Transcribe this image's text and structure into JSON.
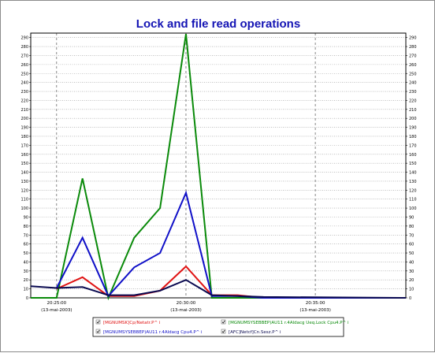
{
  "chart_data": {
    "type": "line",
    "title": "Lock and file read operations",
    "xlabel": "",
    "ylabel": "",
    "ylim": [
      0,
      295
    ],
    "yticks": [
      0,
      10,
      20,
      30,
      40,
      50,
      60,
      70,
      80,
      90,
      100,
      110,
      120,
      130,
      140,
      150,
      160,
      170,
      180,
      190,
      200,
      210,
      220,
      230,
      240,
      250,
      260,
      270,
      280,
      290
    ],
    "y_axis_right": true,
    "grid": true,
    "xlim": [
      0,
      29
    ],
    "x_ticks": [
      {
        "x": 2,
        "time": "20:25:00",
        "date": "(13-mai-2003)"
      },
      {
        "x": 12,
        "time": "20:30:00",
        "date": "(13-mai-2003)"
      },
      {
        "x": 22,
        "time": "20:35:00",
        "date": "(13-mai-2003)"
      }
    ],
    "legend_position": "bottom",
    "series": [
      {
        "name": "[MGNUMSK]Cp/Netatr.P^ i",
        "color": "#e01414",
        "points": [
          [
            2,
            10
          ],
          [
            4,
            23
          ],
          [
            6,
            2
          ],
          [
            8,
            2
          ],
          [
            10,
            8
          ],
          [
            12,
            35
          ],
          [
            14,
            3
          ],
          [
            16,
            3
          ],
          [
            18,
            0
          ],
          [
            29,
            0
          ]
        ]
      },
      {
        "name": "[MGNUMSYSEBBEP)AU11 r.4Aldacg Ueq.Lock Cpu4.P^ i",
        "color": "#0a8a0a",
        "points": [
          [
            0,
            0
          ],
          [
            2,
            0
          ],
          [
            4,
            133
          ],
          [
            6,
            0
          ],
          [
            8,
            67
          ],
          [
            10,
            100
          ],
          [
            12,
            294
          ],
          [
            14,
            0
          ],
          [
            16,
            0
          ],
          [
            18,
            0
          ],
          [
            29,
            0
          ]
        ]
      },
      {
        "name": "[MGNUMSYSEBBEP)AU11 r.4Aldacg Cpu4.P^ i",
        "color": "#1010c8",
        "points": [
          [
            2,
            11
          ],
          [
            4,
            67
          ],
          [
            6,
            2
          ],
          [
            8,
            34
          ],
          [
            10,
            50
          ],
          [
            12,
            117
          ],
          [
            14,
            2
          ],
          [
            16,
            2
          ],
          [
            18,
            0
          ],
          [
            29,
            0
          ]
        ]
      },
      {
        "name": "[AFC]Netcf]Cn.Sesz.P^ i",
        "color": "#0a0a50",
        "points": [
          [
            0,
            13
          ],
          [
            2,
            11
          ],
          [
            4,
            12
          ],
          [
            6,
            3
          ],
          [
            8,
            3
          ],
          [
            10,
            8
          ],
          [
            12,
            20
          ],
          [
            14,
            3
          ],
          [
            16,
            2
          ],
          [
            18,
            1
          ],
          [
            29,
            0
          ]
        ]
      }
    ]
  }
}
